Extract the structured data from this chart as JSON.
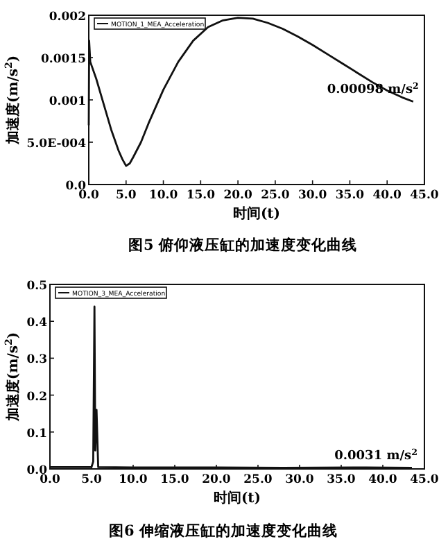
{
  "chart_data": [
    {
      "type": "line",
      "title": "图5  俯仰液压缸的加速度变化曲线",
      "xlabel": "时间(t)",
      "ylabel": "加速度(m/s$^{2}$)",
      "xlim": [
        0,
        45
      ],
      "ylim": [
        0,
        0.002
      ],
      "xticks": [
        {
          "value": 0,
          "label": "0.0"
        },
        {
          "value": 5,
          "label": "5.0"
        },
        {
          "value": 10,
          "label": "10.0"
        },
        {
          "value": 15,
          "label": "15.0"
        },
        {
          "value": 20,
          "label": "20.0"
        },
        {
          "value": 25,
          "label": "25.0"
        },
        {
          "value": 30,
          "label": "30.0"
        },
        {
          "value": 35,
          "label": "35.0"
        },
        {
          "value": 40,
          "label": "40.0"
        },
        {
          "value": 45,
          "label": "45.0"
        }
      ],
      "yticks": [
        {
          "value": 0,
          "label": "0.0"
        },
        {
          "value": 0.0005,
          "label": "5.0E-004"
        },
        0.001,
        0.0015,
        0.002
      ],
      "legend": "top left",
      "grid": false,
      "marker": "none",
      "line_style": "solid",
      "annotations": [
        {
          "text": "0.00098 m/s$^{2}$",
          "x": 43.5,
          "y": 0.00098
        }
      ],
      "series": [
        {
          "name": "MOTION_1_MEA_Acceleration",
          "color": "#111111",
          "x": [
            0,
            0.05,
            0.2,
            1,
            2,
            3,
            4,
            4.5,
            5,
            5.5,
            6,
            7,
            8,
            10,
            12,
            14,
            16,
            18,
            20,
            22,
            24,
            26,
            28,
            30,
            32,
            34,
            36,
            38,
            40,
            42,
            43.5
          ],
          "values": [
            0.0007,
            0.0017,
            0.00145,
            0.00125,
            0.00095,
            0.00065,
            0.0004,
            0.0003,
            0.00022,
            0.00025,
            0.00033,
            0.0005,
            0.00072,
            0.00112,
            0.00145,
            0.0017,
            0.00186,
            0.00194,
            0.00197,
            0.00196,
            0.00191,
            0.00184,
            0.00175,
            0.00165,
            0.00154,
            0.00143,
            0.00132,
            0.00121,
            0.00111,
            0.00103,
            0.00098
          ]
        }
      ]
    },
    {
      "type": "line",
      "title": "图6  伸缩液压缸的加速度变化曲线",
      "xlabel": "时间(t)",
      "ylabel": "加速度(m/s$^{2}$)",
      "xlim": [
        0,
        45
      ],
      "ylim": [
        0,
        0.5
      ],
      "xticks": [
        {
          "value": 0,
          "label": "0.0"
        },
        {
          "value": 5,
          "label": "5.0"
        },
        {
          "value": 10,
          "label": "10.0"
        },
        {
          "value": 15,
          "label": "15.0"
        },
        {
          "value": 20,
          "label": "20.0"
        },
        {
          "value": 25,
          "label": "25.0"
        },
        {
          "value": 30,
          "label": "30.0"
        },
        {
          "value": 35,
          "label": "35.0"
        },
        {
          "value": 40,
          "label": "40.0"
        },
        {
          "value": 45,
          "label": "45.0"
        }
      ],
      "yticks": [
        {
          "value": 0,
          "label": "0.0"
        },
        {
          "value": 0.1,
          "label": "0.1"
        },
        {
          "value": 0.2,
          "label": "0.2"
        },
        {
          "value": 0.3,
          "label": "0.3"
        },
        {
          "value": 0.4,
          "label": "0.4"
        },
        {
          "value": 0.5,
          "label": "0.5"
        }
      ],
      "legend": "top left",
      "grid": false,
      "marker": "none",
      "line_style": "solid",
      "annotations": [
        {
          "text": "0.0031 m/s$^{2}$",
          "x": 43.5,
          "y": 0.0031
        }
      ],
      "series": [
        {
          "name": "MOTION_3_MEA_Acceleration",
          "color": "#111111",
          "x": [
            0,
            5,
            5.2,
            5.35,
            5.45,
            5.6,
            5.8,
            10,
            20,
            28,
            38,
            43.5
          ],
          "values": [
            0.005,
            0.005,
            0.02,
            0.44,
            0.05,
            0.16,
            0.005,
            0.004,
            0.004,
            0.003,
            0.004,
            0.003
          ]
        }
      ]
    }
  ]
}
